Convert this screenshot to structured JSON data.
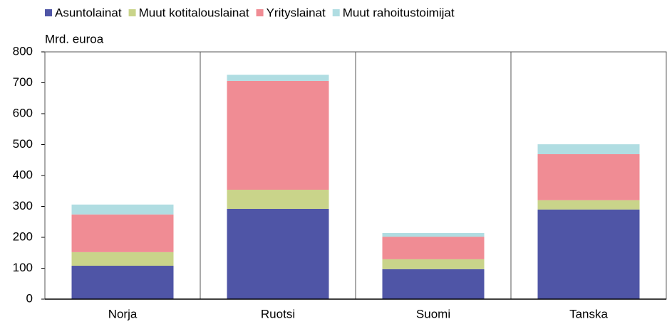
{
  "chart_data": {
    "type": "stacked_bar",
    "y_label": "Mrd. euroa",
    "categories": [
      "Norja",
      "Ruotsi",
      "Suomi",
      "Tanska"
    ],
    "series": [
      {
        "name": "Asuntolainat",
        "color": "#4f55a6",
        "values": [
          108,
          292,
          97,
          290
        ]
      },
      {
        "name": "Muut kotitalouslainat",
        "color": "#c9d48a",
        "values": [
          44,
          62,
          32,
          30
        ]
      },
      {
        "name": "Yrityslainat",
        "color": "#f08c94",
        "values": [
          122,
          352,
          73,
          149
        ]
      },
      {
        "name": "Muut rahoitustoimijat",
        "color": "#b0dde2",
        "values": [
          32,
          20,
          12,
          32
        ]
      }
    ],
    "ylim": [
      0,
      800
    ],
    "yticks": [
      0,
      100,
      200,
      300,
      400,
      500,
      600,
      700,
      800
    ]
  }
}
